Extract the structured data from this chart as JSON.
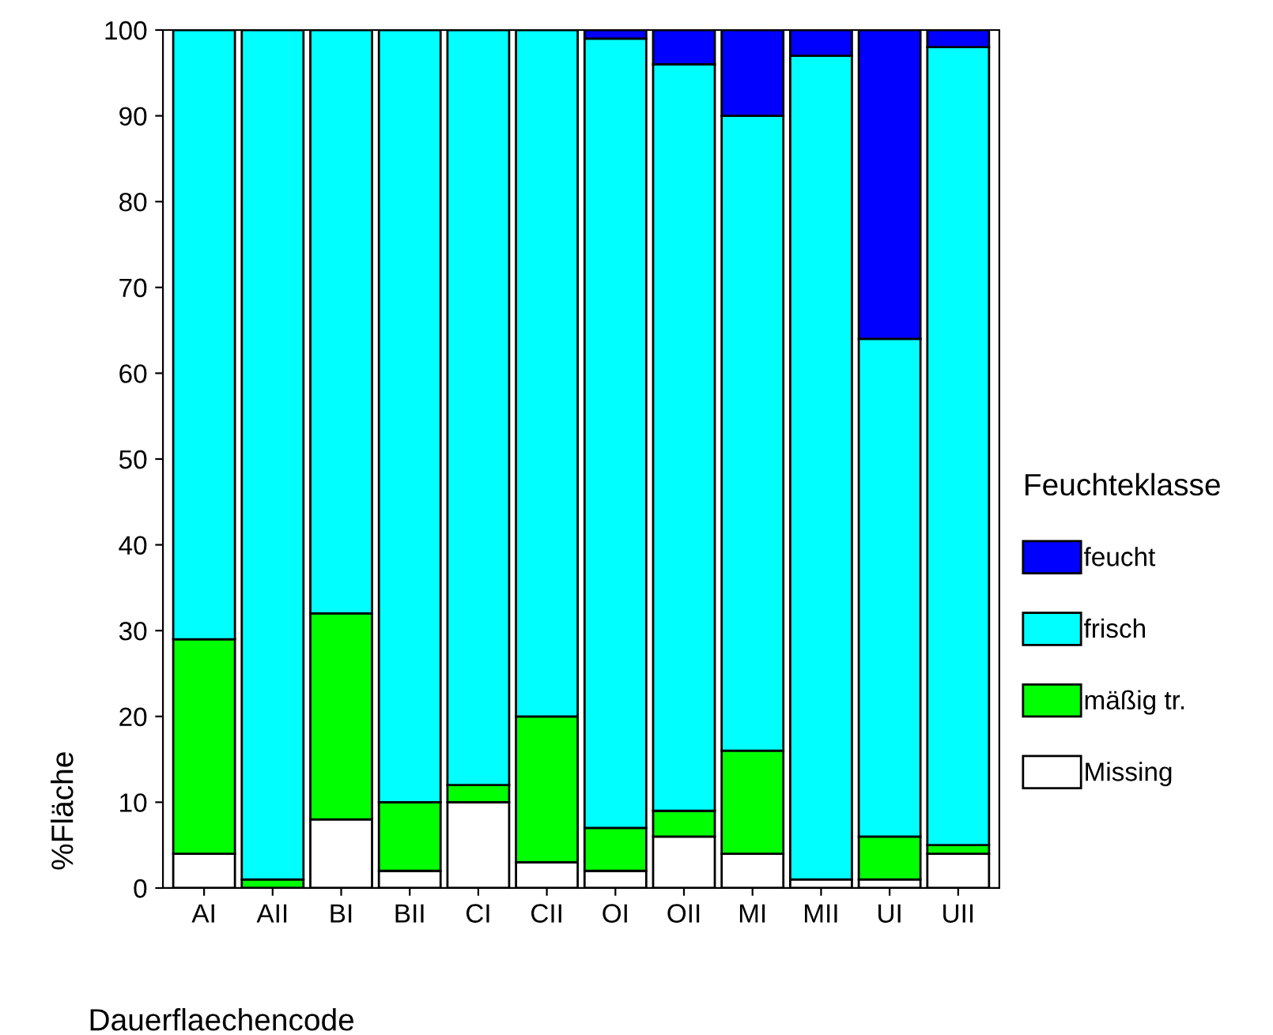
{
  "chart_data": {
    "type": "bar",
    "stacked": true,
    "xlabel": "Dauerflaechencode",
    "ylabel": "%Fläche",
    "legend_title": "Feuchteklasse",
    "categories": [
      "AI",
      "AII",
      "BI",
      "BII",
      "CI",
      "CII",
      "OI",
      "OII",
      "MI",
      "MII",
      "UI",
      "UII"
    ],
    "series": [
      {
        "name": "Missing",
        "color": "#ffffff",
        "values": [
          4,
          0,
          8,
          2,
          10,
          3,
          2,
          6,
          4,
          1,
          1,
          4
        ]
      },
      {
        "name": "mäßig tr.",
        "color": "#00ff00",
        "values": [
          25,
          1,
          24,
          8,
          2,
          17,
          5,
          3,
          12,
          0,
          5,
          1
        ]
      },
      {
        "name": "frisch",
        "color": "#00ffff",
        "values": [
          71,
          99,
          68,
          90,
          88,
          80,
          92,
          87,
          74,
          96,
          58,
          93
        ]
      },
      {
        "name": "feucht",
        "color": "#0000ff",
        "values": [
          0,
          0,
          0,
          0,
          0,
          0,
          1,
          4,
          10,
          3,
          36,
          2
        ]
      }
    ],
    "ylim": [
      0,
      100
    ],
    "yticks": [
      0,
      10,
      20,
      30,
      40,
      50,
      60,
      70,
      80,
      90,
      100
    ],
    "grid": false,
    "legend": "right"
  }
}
